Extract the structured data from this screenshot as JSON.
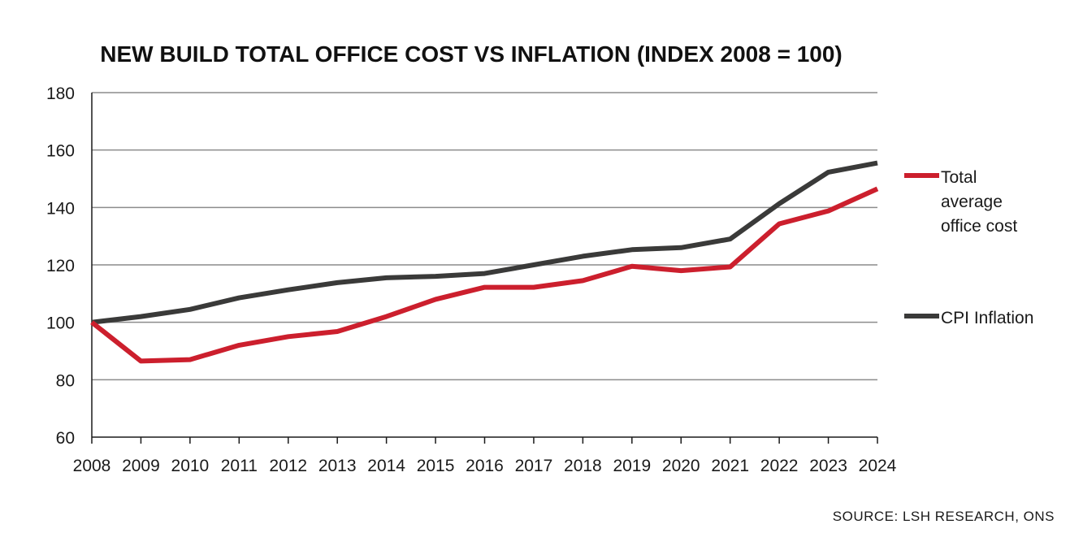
{
  "chart_data": {
    "type": "line",
    "title": "NEW BUILD TOTAL OFFICE COST VS INFLATION (INDEX 2008 = 100)",
    "xlabel": "",
    "ylabel": "",
    "categories": [
      "2008",
      "2009",
      "2010",
      "2011",
      "2012",
      "2013",
      "2014",
      "2015",
      "2016",
      "2017",
      "2018",
      "2019",
      "2020",
      "2021",
      "2022",
      "2023",
      "2024"
    ],
    "y_ticks": [
      "60",
      "80",
      "100",
      "120",
      "140",
      "160",
      "180"
    ],
    "ylim": [
      60,
      180
    ],
    "grid": "horizontal",
    "legend_position": "right",
    "series": [
      {
        "name": "Total average office cost",
        "name_lines": [
          "Total",
          "average",
          "office cost"
        ],
        "color": "#cc1f2d",
        "values": [
          100,
          86.5,
          87,
          92,
          95,
          96.8,
          102,
          108,
          112.2,
          112.2,
          114.5,
          119.5,
          118,
          119.3,
          134.3,
          138.8,
          146.5
        ]
      },
      {
        "name": "CPI Inflation",
        "name_lines": [
          "CPI Inflation"
        ],
        "color": "#3a3a39",
        "values": [
          100,
          102,
          104.5,
          108.5,
          111.3,
          113.8,
          115.5,
          116,
          117,
          120,
          123,
          125.3,
          126,
          129,
          141.3,
          152.3,
          155.5
        ]
      }
    ],
    "source": "SOURCE: LSH RESEARCH, ONS",
    "colors": {
      "axis": "#1a1a1a",
      "grid": "#8c8c8c"
    }
  }
}
